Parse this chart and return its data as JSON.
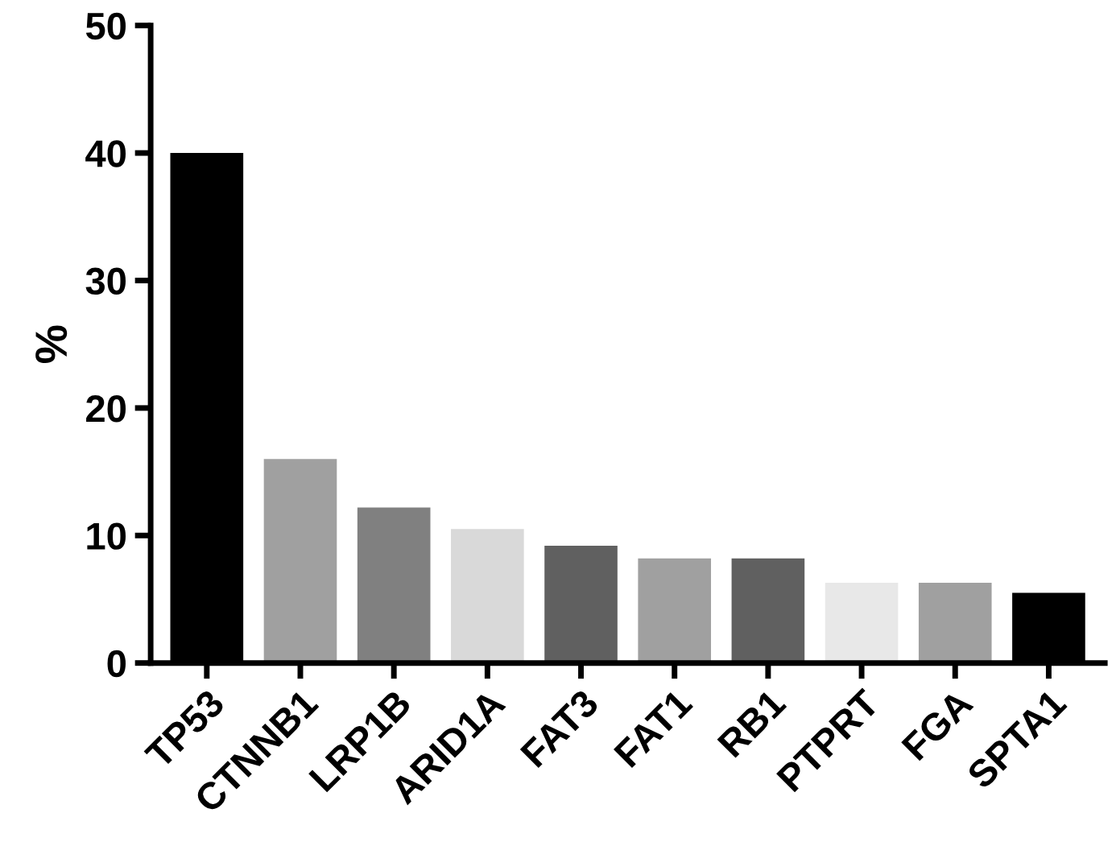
{
  "chart_data": {
    "type": "bar",
    "ylabel": "%",
    "categories": [
      "TP53",
      "CTNNB1",
      "LRP1B",
      "ARID1A",
      "FAT3",
      "FAT1",
      "RB1",
      "PTPRT",
      "FGA",
      "SPTA1"
    ],
    "values": [
      40,
      16,
      12.2,
      10.5,
      9.2,
      8.2,
      8.2,
      6.3,
      6.3,
      5.5
    ],
    "colors": [
      "#000000",
      "#a0a0a0",
      "#808080",
      "#d9d9d9",
      "#606060",
      "#a0a0a0",
      "#606060",
      "#e8e8e8",
      "#a0a0a0",
      "#000000"
    ],
    "ylim": [
      0,
      50
    ],
    "yticks": [
      0,
      10,
      20,
      30,
      40,
      50
    ],
    "grid": false,
    "legend": false
  }
}
